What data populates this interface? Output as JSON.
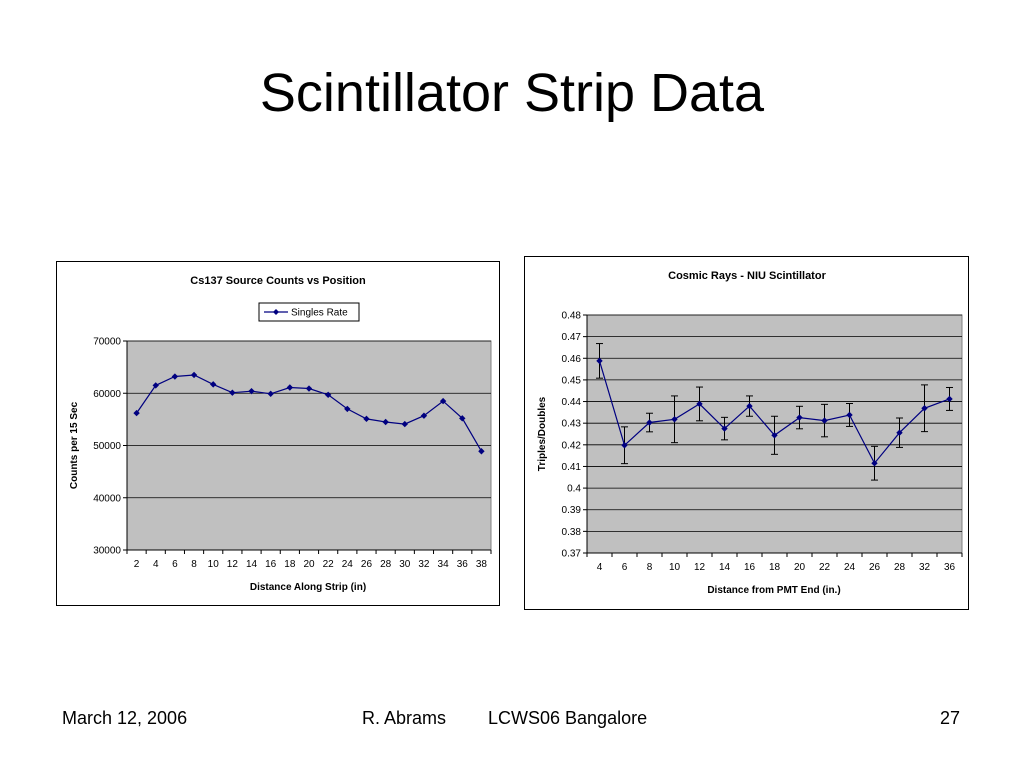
{
  "slide": {
    "title": "Scintillator Strip Data"
  },
  "footer": {
    "date": "March 12, 2006",
    "author": "R. Abrams",
    "conference": "LCWS06 Bangalore",
    "page": "27"
  },
  "colors": {
    "series": "#000080",
    "plot_bg": "#c0c0c0",
    "grid": "#000000"
  },
  "chart_data": [
    {
      "type": "line",
      "title": "Cs137 Source Counts vs Position",
      "xlabel": "Distance Along Strip (in)",
      "ylabel": "Counts per 15 Sec",
      "legend_position": "top-center",
      "grid": true,
      "ylim": [
        30000,
        70000
      ],
      "yticks": [
        "30000",
        "40000",
        "50000",
        "60000",
        "70000"
      ],
      "categories": [
        "2",
        "4",
        "6",
        "8",
        "10",
        "12",
        "14",
        "16",
        "18",
        "20",
        "22",
        "24",
        "26",
        "28",
        "30",
        "32",
        "34",
        "36",
        "38"
      ],
      "series": [
        {
          "name": "Singles Rate",
          "values": [
            56200,
            61500,
            63200,
            63500,
            61700,
            60100,
            60400,
            59900,
            61100,
            60900,
            59700,
            57000,
            55100,
            54500,
            54100,
            55700,
            58500,
            55200,
            48900
          ]
        }
      ]
    },
    {
      "type": "line",
      "title": "Cosmic Rays - NIU Scintillator",
      "xlabel": "Distance from PMT End (in.)",
      "ylabel": "Triples/Doubles",
      "legend_position": "none",
      "grid": true,
      "ylim": [
        0.37,
        0.48
      ],
      "yticks": [
        "0.37",
        "0.38",
        "0.39",
        "0.4",
        "0.41",
        "0.42",
        "0.43",
        "0.44",
        "0.45",
        "0.46",
        "0.47",
        "0.48"
      ],
      "categories": [
        "4",
        "6",
        "8",
        "10",
        "12",
        "14",
        "16",
        "18",
        "20",
        "22",
        "24",
        "26",
        "28",
        "32",
        "36"
      ],
      "series": [
        {
          "values": [
            0.4588,
            0.4198,
            0.4303,
            0.4318,
            0.4389,
            0.4275,
            0.4379,
            0.4244,
            0.4326,
            0.4312,
            0.4338,
            0.4115,
            0.4256,
            0.4369,
            0.4412
          ],
          "error": [
            0.008,
            0.0085,
            0.0043,
            0.0108,
            0.0078,
            0.0052,
            0.0047,
            0.0088,
            0.0052,
            0.0075,
            0.0053,
            0.0078,
            0.0068,
            0.0108,
            0.0053
          ]
        }
      ]
    }
  ]
}
